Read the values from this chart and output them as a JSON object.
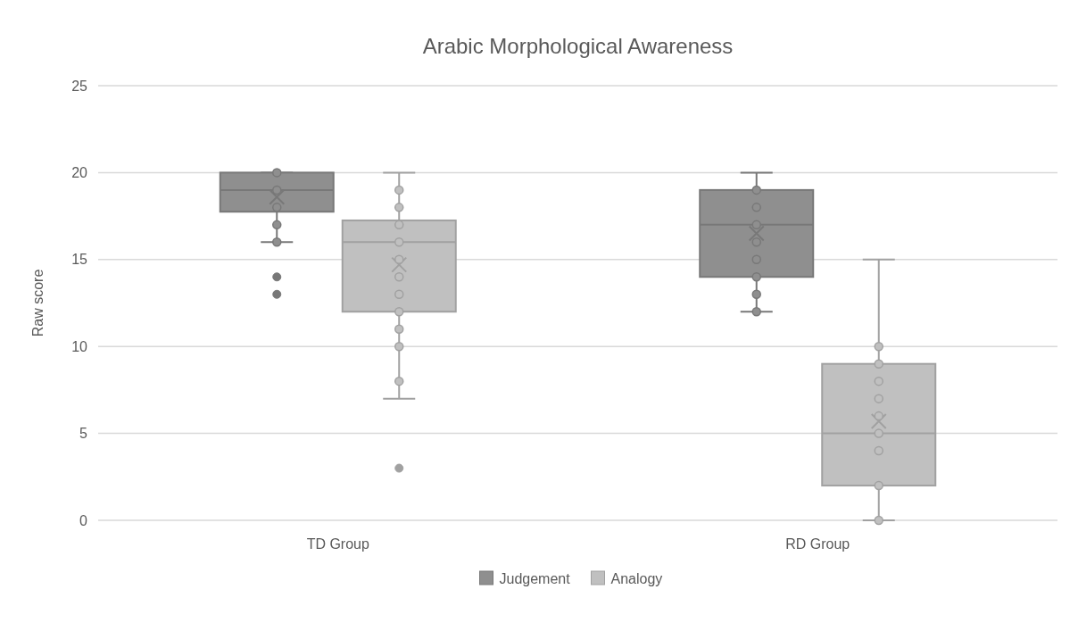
{
  "chart_data": {
    "type": "box",
    "title": "Arabic Morphological Awareness",
    "ylabel": "Raw score",
    "categories": [
      "TD Group",
      "RD Group"
    ],
    "ylim": [
      0,
      25
    ],
    "yticks": [
      0,
      5,
      10,
      15,
      20,
      25
    ],
    "grid": "y",
    "legend": "bottom",
    "series": [
      {
        "name": "Judgement",
        "color": "#8f8f8f",
        "boxes": [
          {
            "low": 16,
            "q1": 17.75,
            "median": 19,
            "q3": 20,
            "high": 20,
            "mean": 18.6,
            "outliers": [
              14,
              13
            ]
          },
          {
            "low": 12,
            "q1": 14,
            "median": 17,
            "q3": 19,
            "high": 20,
            "mean": 16.5
          }
        ]
      },
      {
        "name": "Analogy",
        "color": "#c0c0c0",
        "boxes": [
          {
            "low": 7,
            "q1": 12,
            "median": 16,
            "q3": 17.25,
            "high": 20,
            "mean": 14.7,
            "outliers": [
              3
            ]
          },
          {
            "low": 0,
            "q1": 2,
            "median": 5,
            "q3": 9,
            "high": 15,
            "mean": 5.7
          }
        ]
      },
      {
        "type": "scatter",
        "color": "#8f8f8f",
        "x": [
          "TD Group",
          "TD Group",
          "TD Group",
          "TD Group",
          "TD Group",
          "RD Group",
          "RD Group",
          "RD Group",
          "RD Group",
          "RD Group",
          "RD Group",
          "RD Group",
          "RD Group"
        ],
        "values": [
          20,
          19,
          18,
          17,
          16,
          19,
          18,
          17,
          16,
          15,
          14,
          13,
          12
        ]
      },
      {
        "type": "scatter",
        "color": "#c0c0c0",
        "x": [
          "TD Group",
          "TD Group",
          "TD Group",
          "TD Group",
          "TD Group",
          "TD Group",
          "TD Group",
          "TD Group",
          "TD Group",
          "TD Group",
          "TD Group",
          "RD Group",
          "RD Group",
          "RD Group",
          "RD Group",
          "RD Group",
          "RD Group",
          "RD Group",
          "RD Group",
          "RD Group"
        ],
        "values": [
          19,
          18,
          17,
          16,
          15,
          14,
          13,
          12,
          11,
          10,
          8,
          10,
          9,
          8,
          7,
          6,
          5,
          4,
          2,
          0
        ]
      }
    ]
  }
}
